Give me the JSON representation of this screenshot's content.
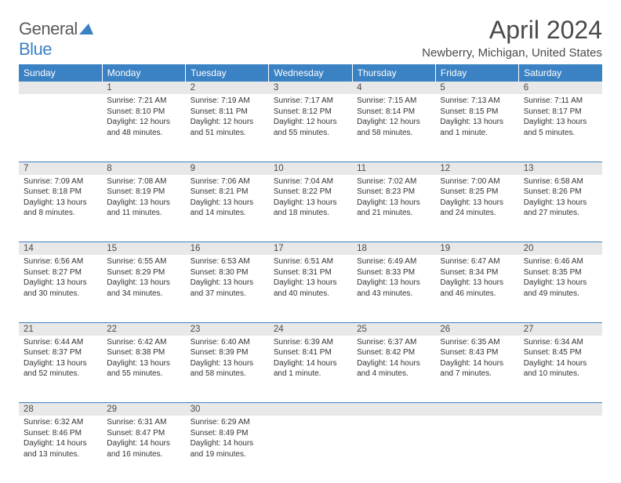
{
  "brand": {
    "part1": "General",
    "part2": "Blue"
  },
  "title": "April 2024",
  "location": "Newberry, Michigan, United States",
  "colors": {
    "header_bg": "#3b82c4",
    "header_text": "#ffffff",
    "daynum_bg": "#e8e8e8",
    "text": "#333333",
    "rule": "#3b82c4"
  },
  "weekdays": [
    "Sunday",
    "Monday",
    "Tuesday",
    "Wednesday",
    "Thursday",
    "Friday",
    "Saturday"
  ],
  "weeks": [
    [
      null,
      {
        "n": "1",
        "sr": "7:21 AM",
        "ss": "8:10 PM",
        "dl": "12 hours and 48 minutes."
      },
      {
        "n": "2",
        "sr": "7:19 AM",
        "ss": "8:11 PM",
        "dl": "12 hours and 51 minutes."
      },
      {
        "n": "3",
        "sr": "7:17 AM",
        "ss": "8:12 PM",
        "dl": "12 hours and 55 minutes."
      },
      {
        "n": "4",
        "sr": "7:15 AM",
        "ss": "8:14 PM",
        "dl": "12 hours and 58 minutes."
      },
      {
        "n": "5",
        "sr": "7:13 AM",
        "ss": "8:15 PM",
        "dl": "13 hours and 1 minute."
      },
      {
        "n": "6",
        "sr": "7:11 AM",
        "ss": "8:17 PM",
        "dl": "13 hours and 5 minutes."
      }
    ],
    [
      {
        "n": "7",
        "sr": "7:09 AM",
        "ss": "8:18 PM",
        "dl": "13 hours and 8 minutes."
      },
      {
        "n": "8",
        "sr": "7:08 AM",
        "ss": "8:19 PM",
        "dl": "13 hours and 11 minutes."
      },
      {
        "n": "9",
        "sr": "7:06 AM",
        "ss": "8:21 PM",
        "dl": "13 hours and 14 minutes."
      },
      {
        "n": "10",
        "sr": "7:04 AM",
        "ss": "8:22 PM",
        "dl": "13 hours and 18 minutes."
      },
      {
        "n": "11",
        "sr": "7:02 AM",
        "ss": "8:23 PM",
        "dl": "13 hours and 21 minutes."
      },
      {
        "n": "12",
        "sr": "7:00 AM",
        "ss": "8:25 PM",
        "dl": "13 hours and 24 minutes."
      },
      {
        "n": "13",
        "sr": "6:58 AM",
        "ss": "8:26 PM",
        "dl": "13 hours and 27 minutes."
      }
    ],
    [
      {
        "n": "14",
        "sr": "6:56 AM",
        "ss": "8:27 PM",
        "dl": "13 hours and 30 minutes."
      },
      {
        "n": "15",
        "sr": "6:55 AM",
        "ss": "8:29 PM",
        "dl": "13 hours and 34 minutes."
      },
      {
        "n": "16",
        "sr": "6:53 AM",
        "ss": "8:30 PM",
        "dl": "13 hours and 37 minutes."
      },
      {
        "n": "17",
        "sr": "6:51 AM",
        "ss": "8:31 PM",
        "dl": "13 hours and 40 minutes."
      },
      {
        "n": "18",
        "sr": "6:49 AM",
        "ss": "8:33 PM",
        "dl": "13 hours and 43 minutes."
      },
      {
        "n": "19",
        "sr": "6:47 AM",
        "ss": "8:34 PM",
        "dl": "13 hours and 46 minutes."
      },
      {
        "n": "20",
        "sr": "6:46 AM",
        "ss": "8:35 PM",
        "dl": "13 hours and 49 minutes."
      }
    ],
    [
      {
        "n": "21",
        "sr": "6:44 AM",
        "ss": "8:37 PM",
        "dl": "13 hours and 52 minutes."
      },
      {
        "n": "22",
        "sr": "6:42 AM",
        "ss": "8:38 PM",
        "dl": "13 hours and 55 minutes."
      },
      {
        "n": "23",
        "sr": "6:40 AM",
        "ss": "8:39 PM",
        "dl": "13 hours and 58 minutes."
      },
      {
        "n": "24",
        "sr": "6:39 AM",
        "ss": "8:41 PM",
        "dl": "14 hours and 1 minute."
      },
      {
        "n": "25",
        "sr": "6:37 AM",
        "ss": "8:42 PM",
        "dl": "14 hours and 4 minutes."
      },
      {
        "n": "26",
        "sr": "6:35 AM",
        "ss": "8:43 PM",
        "dl": "14 hours and 7 minutes."
      },
      {
        "n": "27",
        "sr": "6:34 AM",
        "ss": "8:45 PM",
        "dl": "14 hours and 10 minutes."
      }
    ],
    [
      {
        "n": "28",
        "sr": "6:32 AM",
        "ss": "8:46 PM",
        "dl": "14 hours and 13 minutes."
      },
      {
        "n": "29",
        "sr": "6:31 AM",
        "ss": "8:47 PM",
        "dl": "14 hours and 16 minutes."
      },
      {
        "n": "30",
        "sr": "6:29 AM",
        "ss": "8:49 PM",
        "dl": "14 hours and 19 minutes."
      },
      null,
      null,
      null,
      null
    ]
  ],
  "labels": {
    "sunrise": "Sunrise:",
    "sunset": "Sunset:",
    "daylight": "Daylight:"
  }
}
